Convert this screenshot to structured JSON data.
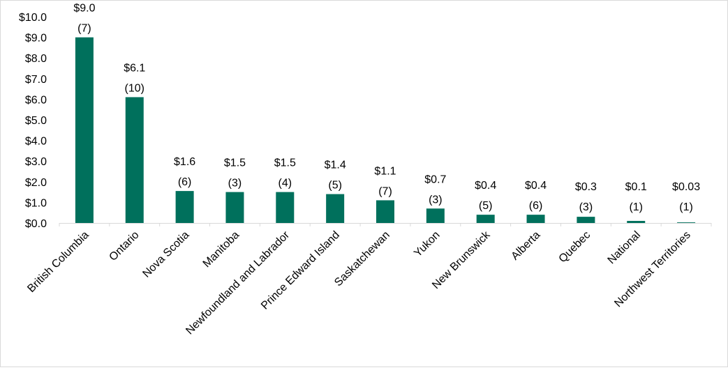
{
  "chart_data": {
    "type": "bar",
    "categories": [
      "British Columbia",
      "Ontario",
      "Nova Scotia",
      "Manitoba",
      "Newfoundland and Labrador",
      "Prince Edward Island",
      "Saskatchewan",
      "Yukon",
      "New Brunswick",
      "Alberta",
      "Quebec",
      "National",
      "Northwest Territories"
    ],
    "values": [
      9.0,
      6.1,
      1.55,
      1.5,
      1.5,
      1.4,
      1.1,
      0.7,
      0.4,
      0.4,
      0.3,
      0.1,
      0.03
    ],
    "value_labels": [
      "$9.0",
      "$6.1",
      "$1.6",
      "$1.5",
      "$1.5",
      "$1.4",
      "$1.1",
      "$0.7",
      "$0.4",
      "$0.4",
      "$0.3",
      "$0.1",
      "$0.03"
    ],
    "count_labels": [
      "(7)",
      "(10)",
      "(6)",
      "(3)",
      "(4)",
      "(5)",
      "(7)",
      "(3)",
      "(5)",
      "(6)",
      "(3)",
      "(1)",
      "(1)"
    ],
    "y_ticks": [
      "$0.0",
      "$1.0",
      "$2.0",
      "$3.0",
      "$4.0",
      "$5.0",
      "$6.0",
      "$7.0",
      "$8.0",
      "$9.0",
      "$10.0"
    ],
    "ylim": [
      0,
      10
    ],
    "title": "",
    "xlabel": "",
    "ylabel": "",
    "grid": false,
    "bar_color": "#00705c",
    "axis_color": "#d9d9d9"
  }
}
